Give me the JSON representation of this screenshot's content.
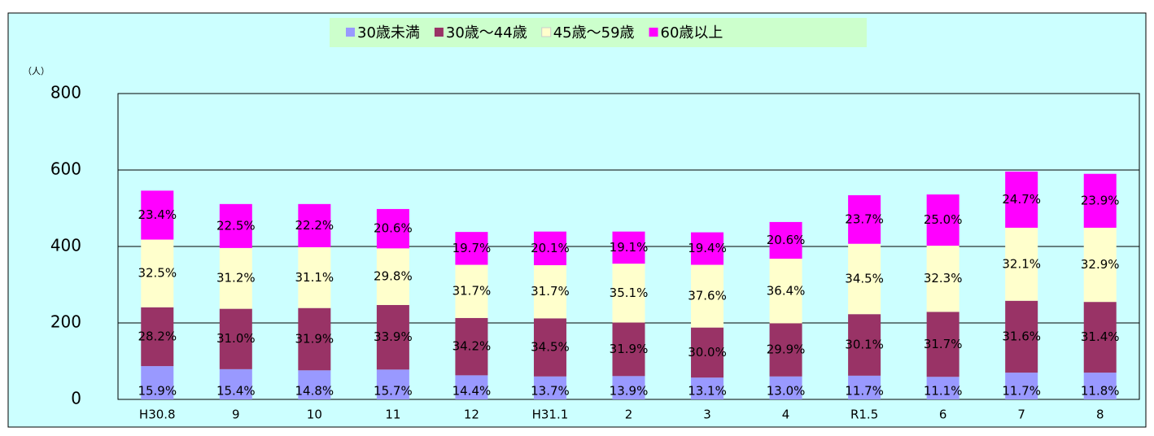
{
  "chart_data": {
    "type": "stacked_bar",
    "y_unit": "（人）",
    "categories": [
      "H30.8",
      "9",
      "10",
      "11",
      "12",
      "H31.1",
      "2",
      "3",
      "4",
      "R1.5",
      "6",
      "7",
      "8"
    ],
    "series": [
      {
        "name": "30歳未満",
        "color": "#9999ff",
        "values": [
          87,
          79,
          76,
          78,
          63,
          60,
          61,
          57,
          60,
          62,
          59,
          70,
          70
        ],
        "share_labels": [
          "15.9%",
          "15.4%",
          "14.8%",
          "15.7%",
          "14.4%",
          "13.7%",
          "13.9%",
          "13.1%",
          "13.0%",
          "11.7%",
          "11.1%",
          "11.7%",
          "11.8%"
        ]
      },
      {
        "name": "30歳～44歳",
        "color": "#993366",
        "values": [
          154,
          158,
          163,
          169,
          150,
          152,
          140,
          131,
          139,
          161,
          170,
          188,
          185
        ],
        "share_labels": [
          "28.2%",
          "31.0%",
          "31.9%",
          "33.9%",
          "34.2%",
          "34.5%",
          "31.9%",
          "30.0%",
          "29.9%",
          "30.1%",
          "31.7%",
          "31.6%",
          "31.4%"
        ]
      },
      {
        "name": "45歳～59歳",
        "color": "#ffffcc",
        "values": [
          177,
          159,
          159,
          148,
          139,
          139,
          154,
          164,
          169,
          184,
          173,
          191,
          194
        ],
        "share_labels": [
          "32.5%",
          "31.2%",
          "31.1%",
          "29.8%",
          "31.7%",
          "31.7%",
          "35.1%",
          "37.6%",
          "36.4%",
          "34.5%",
          "32.3%",
          "32.1%",
          "32.9%"
        ]
      },
      {
        "name": "60歳以上",
        "color": "#ff00ff",
        "values": [
          128,
          115,
          113,
          103,
          86,
          88,
          84,
          85,
          96,
          127,
          134,
          147,
          141
        ],
        "share_labels": [
          "23.4%",
          "22.5%",
          "22.2%",
          "20.6%",
          "19.7%",
          "20.1%",
          "19.1%",
          "19.4%",
          "20.6%",
          "23.7%",
          "25.0%",
          "24.7%",
          "23.9%"
        ]
      }
    ],
    "ylim": [
      0,
      800
    ],
    "yticks": [
      0,
      200,
      400,
      600,
      800
    ],
    "grid": true,
    "legend": "top"
  }
}
